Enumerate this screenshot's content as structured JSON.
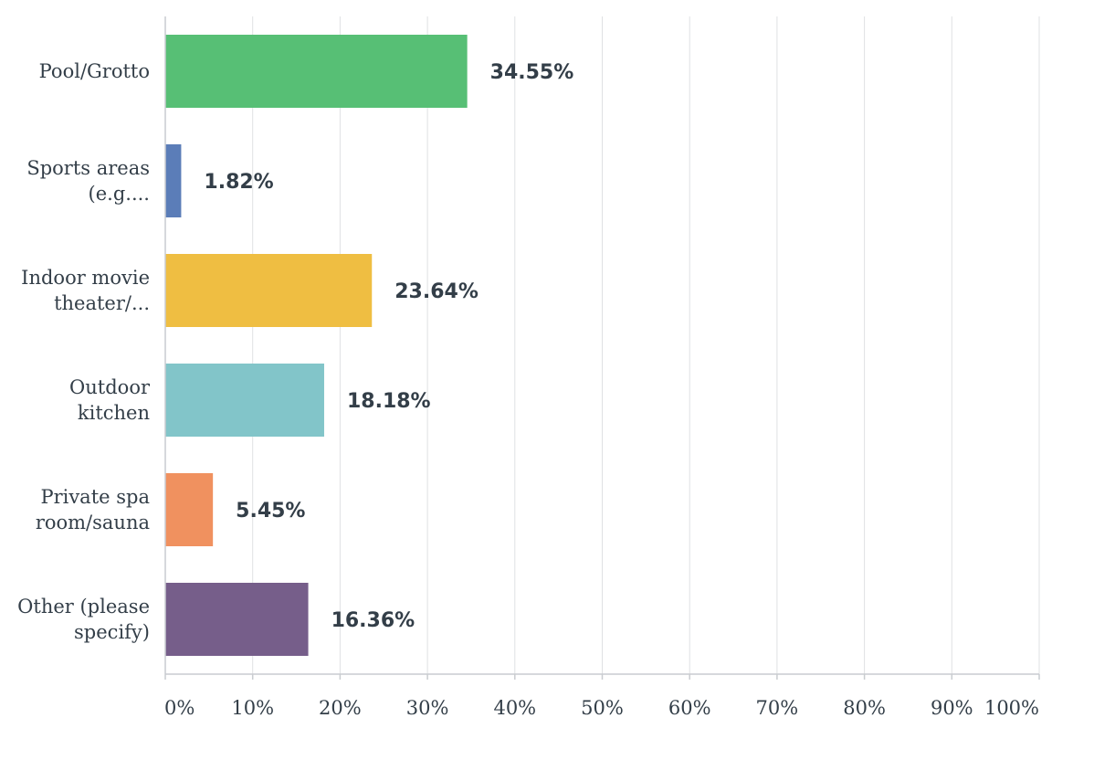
{
  "chart_data": {
    "type": "bar",
    "orientation": "horizontal",
    "categories": [
      [
        "Pool/Grotto"
      ],
      [
        "Sports areas",
        "(e.g...."
      ],
      [
        "Indoor movie",
        "theater/..."
      ],
      [
        "Outdoor",
        "kitchen"
      ],
      [
        "Private spa",
        "room/sauna"
      ],
      [
        "Other (please",
        "specify)"
      ]
    ],
    "values": [
      34.55,
      1.82,
      23.64,
      18.18,
      5.45,
      16.36
    ],
    "value_labels": [
      "34.55%",
      "1.82%",
      "23.64%",
      "18.18%",
      "5.45%",
      "16.36%"
    ],
    "colors": [
      "#57bf75",
      "#5b7db8",
      "#efbe42",
      "#82c5c9",
      "#f0915f",
      "#765e8a"
    ],
    "xlim": [
      0,
      100
    ],
    "x_ticks": [
      "0%",
      "10%",
      "20%",
      "30%",
      "40%",
      "50%",
      "60%",
      "70%",
      "80%",
      "90%",
      "100%"
    ],
    "grid": true,
    "title": "",
    "xlabel": "",
    "ylabel": ""
  }
}
